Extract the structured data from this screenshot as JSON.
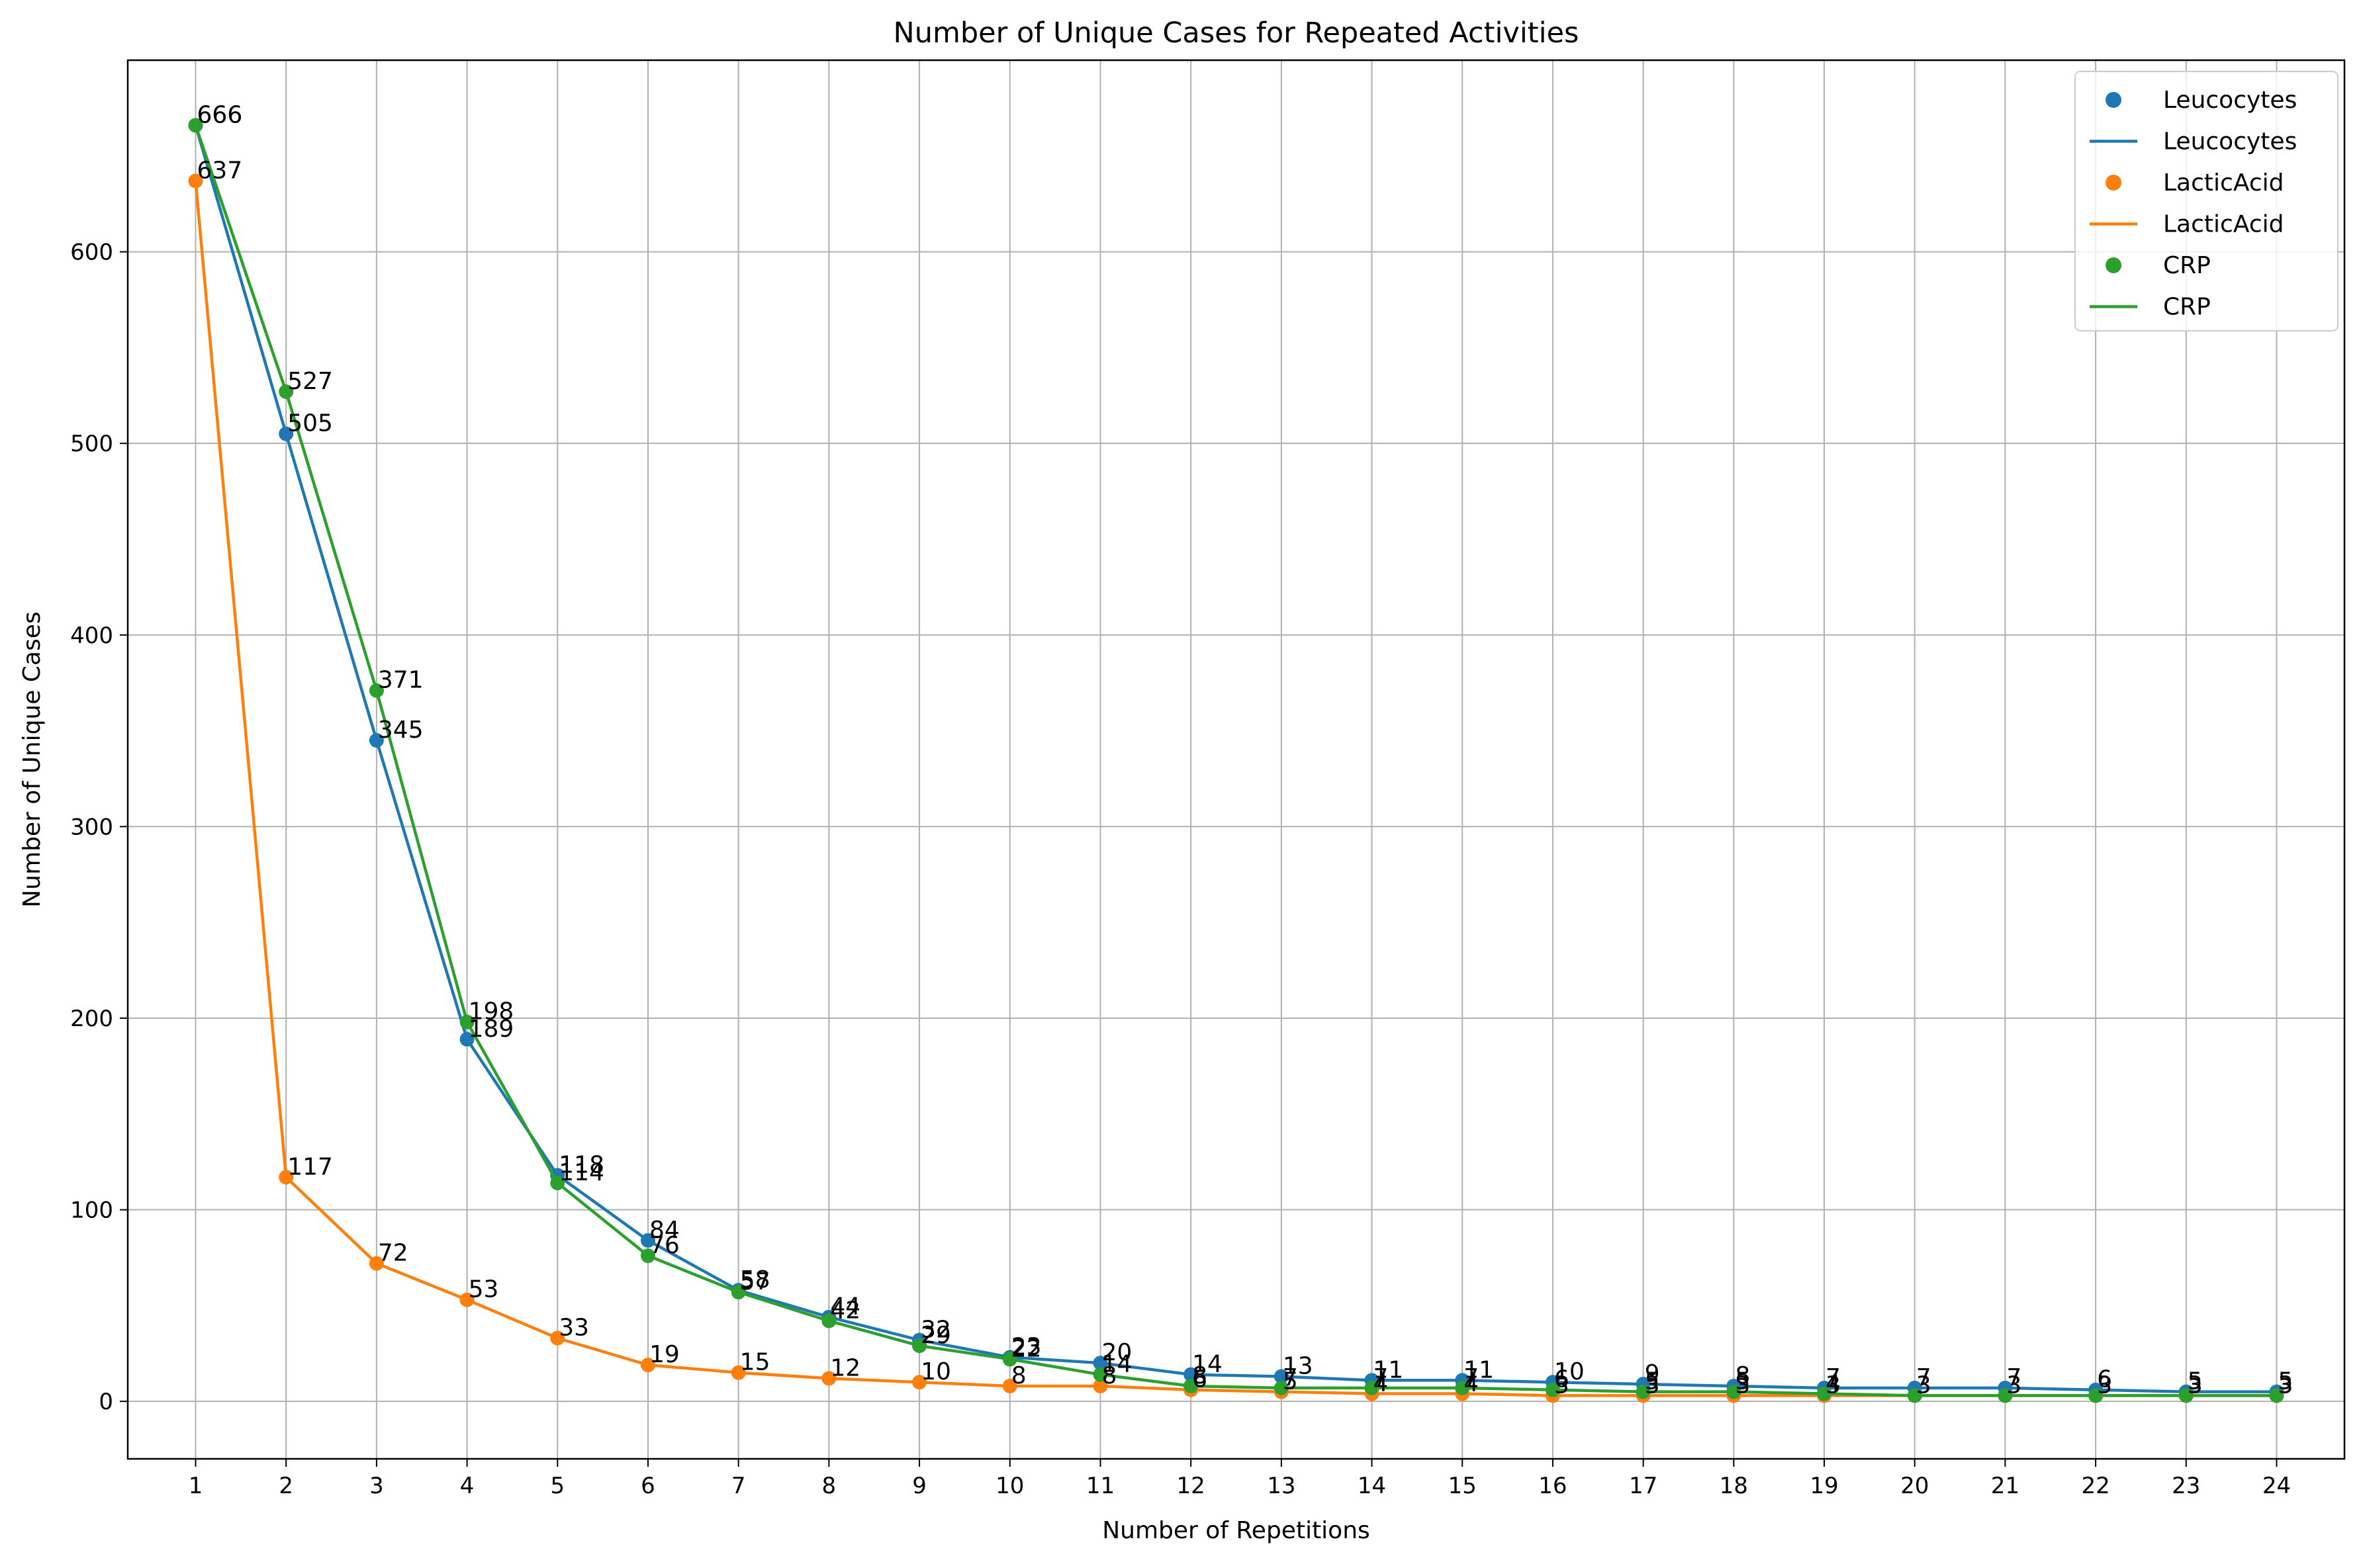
{
  "chart_data": {
    "type": "line",
    "title": "Number of Unique Cases for Repeated Activities",
    "xlabel": "Number of Repetitions",
    "ylabel": "Number of Unique Cases",
    "x": [
      1,
      2,
      3,
      4,
      5,
      6,
      7,
      8,
      9,
      10,
      11,
      12,
      13,
      14,
      15,
      16,
      17,
      18,
      19,
      20,
      21,
      22,
      23,
      24
    ],
    "xlim": [
      0.25,
      24.75
    ],
    "ylim": [
      -30,
      700
    ],
    "yticks": [
      0,
      100,
      200,
      300,
      400,
      500,
      600
    ],
    "grid": true,
    "legend_position": "top-right",
    "legend_entries": [
      {
        "label": "Leucocytes",
        "kind": "marker",
        "series": 0
      },
      {
        "label": "Leucocytes",
        "kind": "line",
        "series": 0
      },
      {
        "label": "LacticAcid",
        "kind": "marker",
        "series": 1
      },
      {
        "label": "LacticAcid",
        "kind": "line",
        "series": 1
      },
      {
        "label": "CRP",
        "kind": "marker",
        "series": 2
      },
      {
        "label": "CRP",
        "kind": "line",
        "series": 2
      }
    ],
    "series": [
      {
        "name": "Leucocytes",
        "color": "#1f77b4",
        "values": [
          666,
          505,
          345,
          189,
          118,
          84,
          58,
          44,
          32,
          23,
          20,
          14,
          13,
          11,
          11,
          10,
          9,
          8,
          7,
          7,
          7,
          6,
          5,
          5
        ]
      },
      {
        "name": "LacticAcid",
        "color": "#ff7f0e",
        "values": [
          637,
          117,
          72,
          53,
          33,
          19,
          15,
          12,
          10,
          8,
          8,
          6,
          5,
          4,
          4,
          3,
          3,
          3,
          3,
          3,
          3,
          3,
          3,
          3
        ]
      },
      {
        "name": "CRP",
        "color": "#2ca02c",
        "values": [
          666,
          527,
          371,
          198,
          114,
          76,
          57,
          42,
          29,
          22,
          14,
          8,
          7,
          7,
          7,
          6,
          5,
          5,
          4,
          3,
          3,
          3,
          3,
          3
        ]
      }
    ]
  }
}
